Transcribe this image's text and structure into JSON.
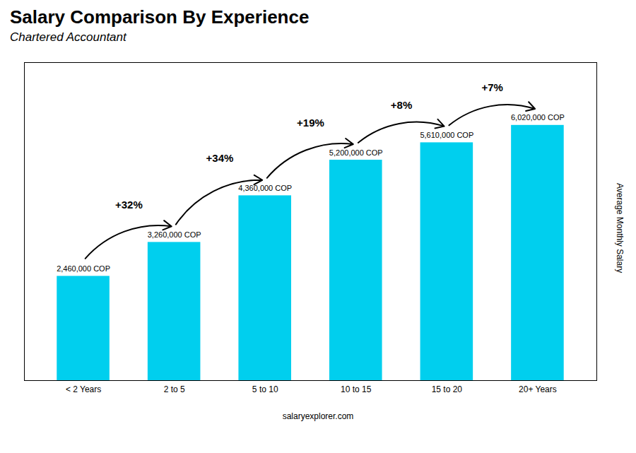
{
  "chart_data": {
    "type": "bar",
    "title": "Salary Comparison By Experience",
    "subtitle": "Chartered Accountant",
    "categories": [
      "< 2 Years",
      "2 to 5",
      "5 to 10",
      "10 to 15",
      "15 to 20",
      "20+ Years"
    ],
    "values": [
      2460000,
      3260000,
      4360000,
      5200000,
      5610000,
      6020000
    ],
    "value_labels": [
      "2,460,000 COP",
      "3,260,000 COP",
      "4,360,000 COP",
      "5,200,000 COP",
      "5,610,000 COP",
      "6,020,000 COP"
    ],
    "data_labels": true,
    "annotations": [
      "+32%",
      "+34%",
      "+19%",
      "+8%",
      "+7%"
    ],
    "ylabel": "Average Monthly Salary",
    "caption": "salaryexplorer.com",
    "color": "#00cfee",
    "ylim": [
      0,
      7500000
    ],
    "tick_labels": "x"
  }
}
